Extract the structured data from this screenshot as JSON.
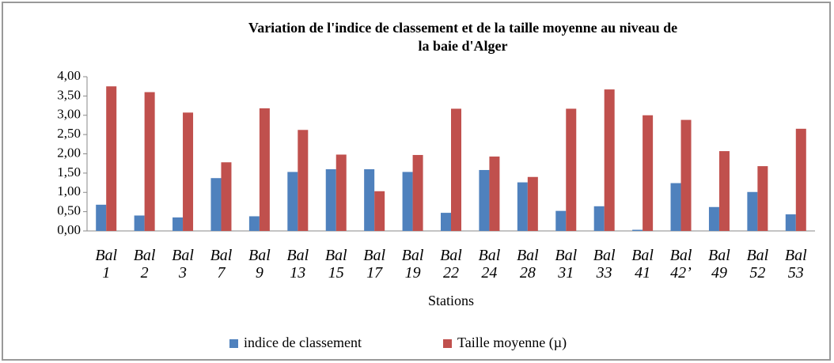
{
  "chart_data": {
    "type": "bar",
    "title": [
      "Variation de l'indice de classement et de la taille moyenne au niveau de",
      "la baie d'Alger"
    ],
    "x_label": "Stations",
    "categories": [
      "Bal 1",
      "Bal 2",
      "Bal 3",
      "Bal 7",
      "Bal 9",
      "Bal 13",
      "Bal 15",
      "Bal 17",
      "Bal 19",
      "Bal 22",
      "Bal 24",
      "Bal 28",
      "Bal 31",
      "Bal 33",
      "Bal 41",
      "Bal 42’",
      "Bal 49",
      "Bal 52",
      "Bal 53"
    ],
    "series": [
      {
        "name": "indice de classement",
        "color": "#4f81bd",
        "values": [
          0.68,
          0.4,
          0.35,
          1.37,
          0.38,
          1.53,
          1.6,
          1.6,
          1.53,
          0.47,
          1.58,
          1.26,
          0.52,
          0.64,
          0.03,
          1.24,
          0.62,
          1.01,
          0.43
        ]
      },
      {
        "name": "Taille moyenne (µ)",
        "color": "#c0504d",
        "values": [
          3.75,
          3.6,
          3.07,
          1.78,
          3.18,
          2.62,
          1.98,
          1.03,
          1.97,
          3.17,
          1.93,
          1.4,
          3.17,
          3.67,
          3.0,
          2.88,
          2.07,
          1.68,
          2.65
        ]
      }
    ],
    "ylim": [
      0,
      4
    ],
    "yticks": [
      {
        "value": 0,
        "label": "0,00"
      },
      {
        "value": 0.5,
        "label": "0,50"
      },
      {
        "value": 1,
        "label": "1,00"
      },
      {
        "value": 1.5,
        "label": "1,50"
      },
      {
        "value": 2,
        "label": "2,00"
      },
      {
        "value": 2.5,
        "label": "2,50"
      },
      {
        "value": 3,
        "label": "3,00"
      },
      {
        "value": 3.5,
        "label": "3,50"
      },
      {
        "value": 4,
        "label": "4,00"
      }
    ],
    "grid": false,
    "legend": "bottom"
  }
}
